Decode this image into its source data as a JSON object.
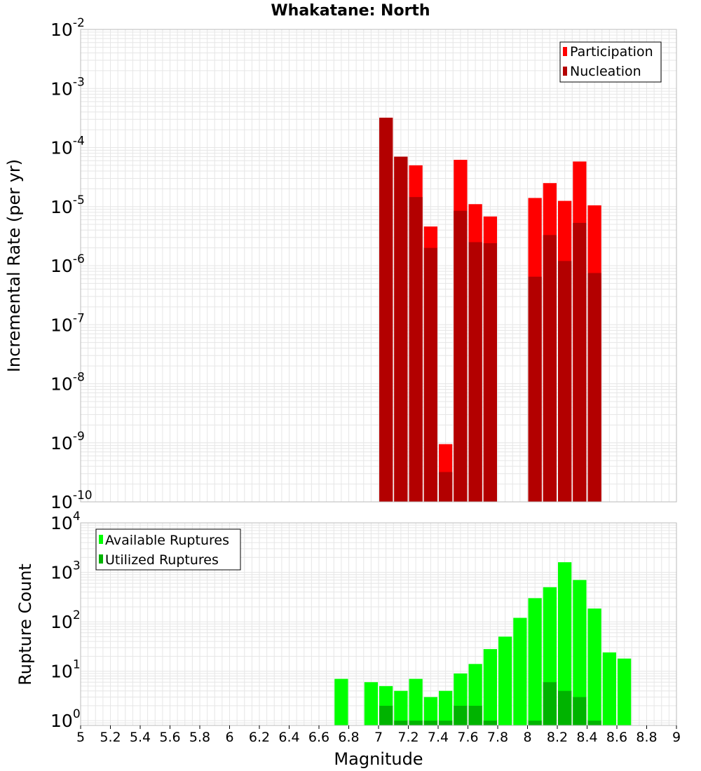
{
  "title": "Whakatane: North",
  "colors": {
    "participation": "#ff0000",
    "nucleation": "#b30000",
    "available": "#00ff00",
    "utilized": "#00b300",
    "grid": "#e6e6e6",
    "frame": "#bbbbbb"
  },
  "chart_data": [
    {
      "type": "bar",
      "ylabel": "Incremental Rate (per yr)",
      "y_scale": "log",
      "ylim": [
        1e-10,
        0.01
      ],
      "y_ticks": [
        {
          "base": "10",
          "exp": "-10",
          "value": 1e-10
        },
        {
          "base": "10",
          "exp": "-9",
          "value": 1e-09
        },
        {
          "base": "10",
          "exp": "-8",
          "value": 1e-08
        },
        {
          "base": "10",
          "exp": "-7",
          "value": 1e-07
        },
        {
          "base": "10",
          "exp": "-6",
          "value": 1e-06
        },
        {
          "base": "10",
          "exp": "-5",
          "value": 1e-05
        },
        {
          "base": "10",
          "exp": "-4",
          "value": 0.0001
        },
        {
          "base": "10",
          "exp": "-3",
          "value": 0.001
        },
        {
          "base": "10",
          "exp": "-2",
          "value": 0.01
        }
      ],
      "legend": {
        "placement": "top-right",
        "entries": [
          "Participation",
          "Nucleation"
        ]
      },
      "grid": true,
      "x": [
        7.05,
        7.15,
        7.25,
        7.35,
        7.45,
        7.55,
        7.65,
        7.75,
        8.05,
        8.15,
        8.25,
        8.35,
        8.45
      ],
      "series": [
        {
          "name": "Participation",
          "values": [
            0.00032,
            7e-05,
            5e-05,
            4.6e-06,
            9.5e-10,
            6.2e-05,
            1.1e-05,
            6.8e-06,
            1.4e-05,
            2.5e-05,
            1.25e-05,
            5.8e-05,
            1.05e-05
          ]
        },
        {
          "name": "Nucleation",
          "values": [
            0.00032,
            7e-05,
            1.45e-05,
            2e-06,
            3.2e-10,
            8.5e-06,
            2.5e-06,
            2.4e-06,
            6.5e-07,
            3.3e-06,
            1.2e-06,
            5.3e-06,
            7.5e-07
          ]
        }
      ]
    },
    {
      "type": "bar",
      "ylabel": "Rupture Count",
      "xlabel": "Magnitude",
      "y_scale": "log",
      "ylim": [
        0.8,
        10000
      ],
      "y_ticks": [
        {
          "base": "10",
          "exp": "0",
          "value": 1
        },
        {
          "base": "10",
          "exp": "1",
          "value": 10
        },
        {
          "base": "10",
          "exp": "2",
          "value": 100
        },
        {
          "base": "10",
          "exp": "3",
          "value": 1000
        },
        {
          "base": "10",
          "exp": "4",
          "value": 10000
        }
      ],
      "xlim": [
        5,
        9
      ],
      "x_ticks": [
        "5",
        "5.2",
        "5.4",
        "5.6",
        "5.8",
        "6",
        "6.2",
        "6.4",
        "6.6",
        "6.8",
        "7",
        "7.2",
        "7.4",
        "7.6",
        "7.8",
        "8",
        "8.2",
        "8.4",
        "8.6",
        "8.8",
        "9"
      ],
      "legend": {
        "placement": "top-left",
        "entries": [
          "Available Ruptures",
          "Utilized Ruptures"
        ]
      },
      "grid": true,
      "x": [
        6.75,
        6.95,
        7.05,
        7.15,
        7.25,
        7.35,
        7.45,
        7.55,
        7.65,
        7.75,
        7.85,
        7.95,
        8.05,
        8.15,
        8.25,
        8.35,
        8.45,
        8.55,
        8.65
      ],
      "series": [
        {
          "name": "Available Ruptures",
          "values": [
            7,
            6,
            5,
            4,
            7,
            3,
            4,
            9,
            14,
            28,
            50,
            120,
            300,
            500,
            1600,
            700,
            185,
            24,
            18
          ]
        },
        {
          "name": "Utilized Ruptures",
          "values": [
            0,
            0,
            2,
            1,
            1,
            1,
            1,
            2,
            2,
            1,
            0,
            0,
            1,
            6,
            4,
            3,
            1,
            0,
            0
          ]
        }
      ]
    }
  ]
}
